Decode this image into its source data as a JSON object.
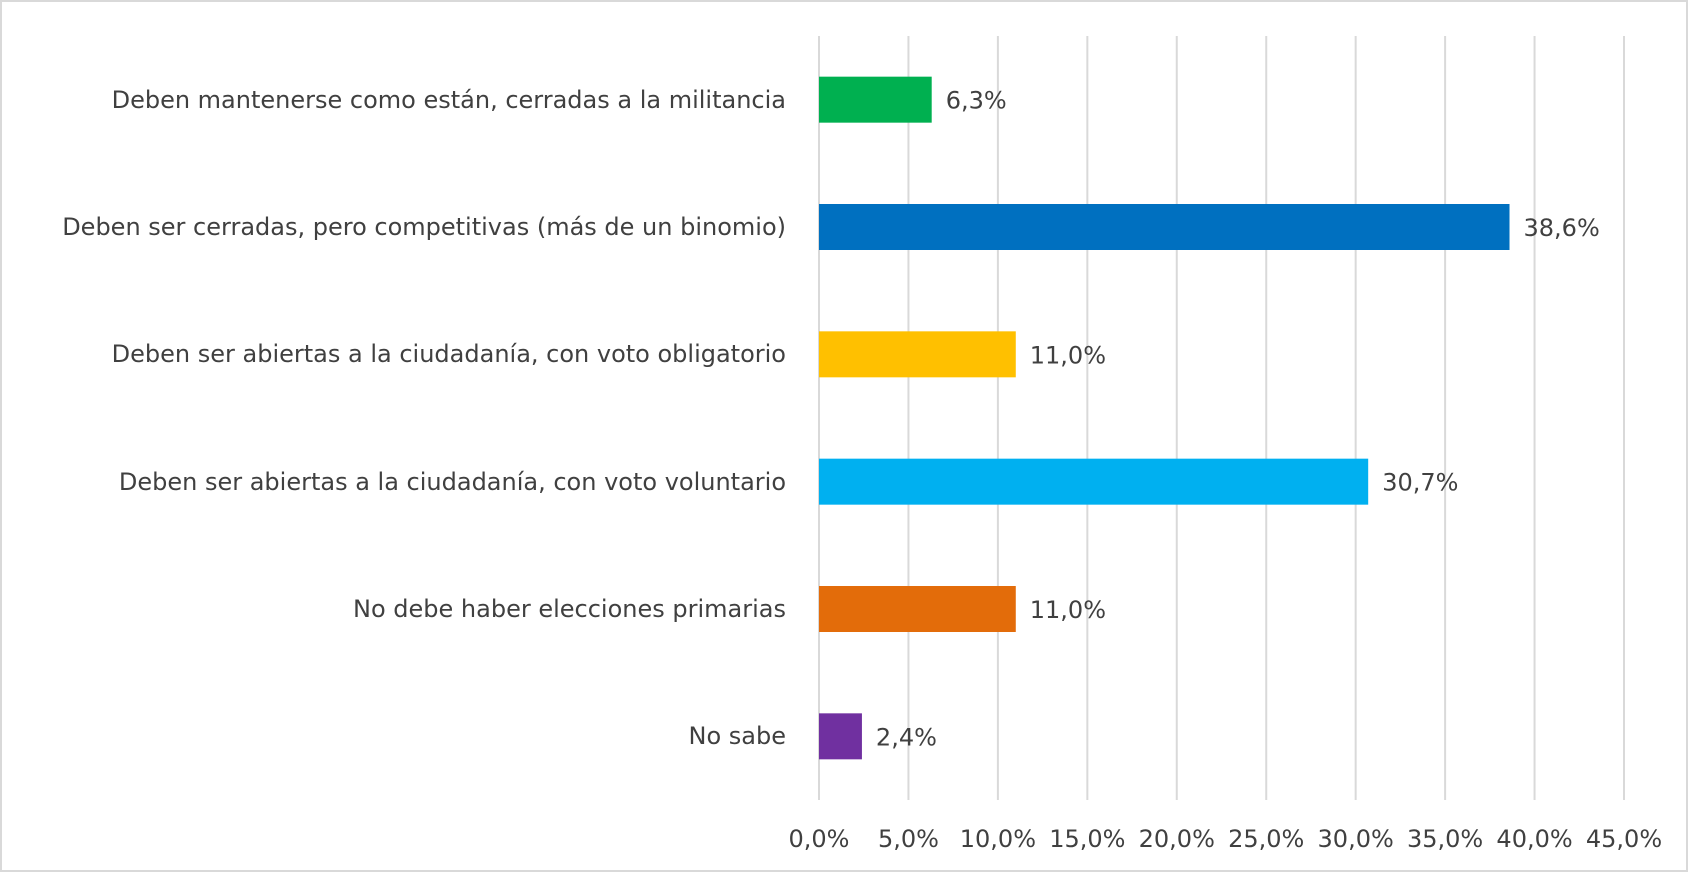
{
  "chart_data": {
    "type": "bar",
    "orientation": "horizontal",
    "categories": [
      "Deben mantenerse como están, cerradas a la militancia",
      "Deben ser cerradas, pero competitivas (más de un binomio)",
      "Deben ser abiertas a la ciudadanía, con voto obligatorio",
      "Deben ser abiertas a la ciudadanía, con voto voluntario",
      "No debe haber elecciones primarias",
      "No sabe"
    ],
    "values": [
      6.3,
      38.6,
      11.0,
      30.7,
      11.0,
      2.4
    ],
    "value_labels": [
      "6,3%",
      "38,6%",
      "11,0%",
      "30,7%",
      "11,0%",
      "2,4%"
    ],
    "colors": [
      "#00b050",
      "#0070c0",
      "#ffc000",
      "#00b0f0",
      "#e36c0a",
      "#7030a0"
    ],
    "xlim": [
      0,
      45
    ],
    "xticks": [
      {
        "value": 0,
        "label": "0,0%"
      },
      {
        "value": 5,
        "label": "5,0%"
      },
      {
        "value": 10,
        "label": "10,0%"
      },
      {
        "value": 15,
        "label": "15,0%"
      },
      {
        "value": 20,
        "label": "20,0%"
      },
      {
        "value": 25,
        "label": "25,0%"
      },
      {
        "value": 30,
        "label": "30,0%"
      },
      {
        "value": 35,
        "label": "35,0%"
      },
      {
        "value": 40,
        "label": "40,0%"
      },
      {
        "value": 45,
        "label": "45,0%"
      }
    ],
    "grid": true
  }
}
